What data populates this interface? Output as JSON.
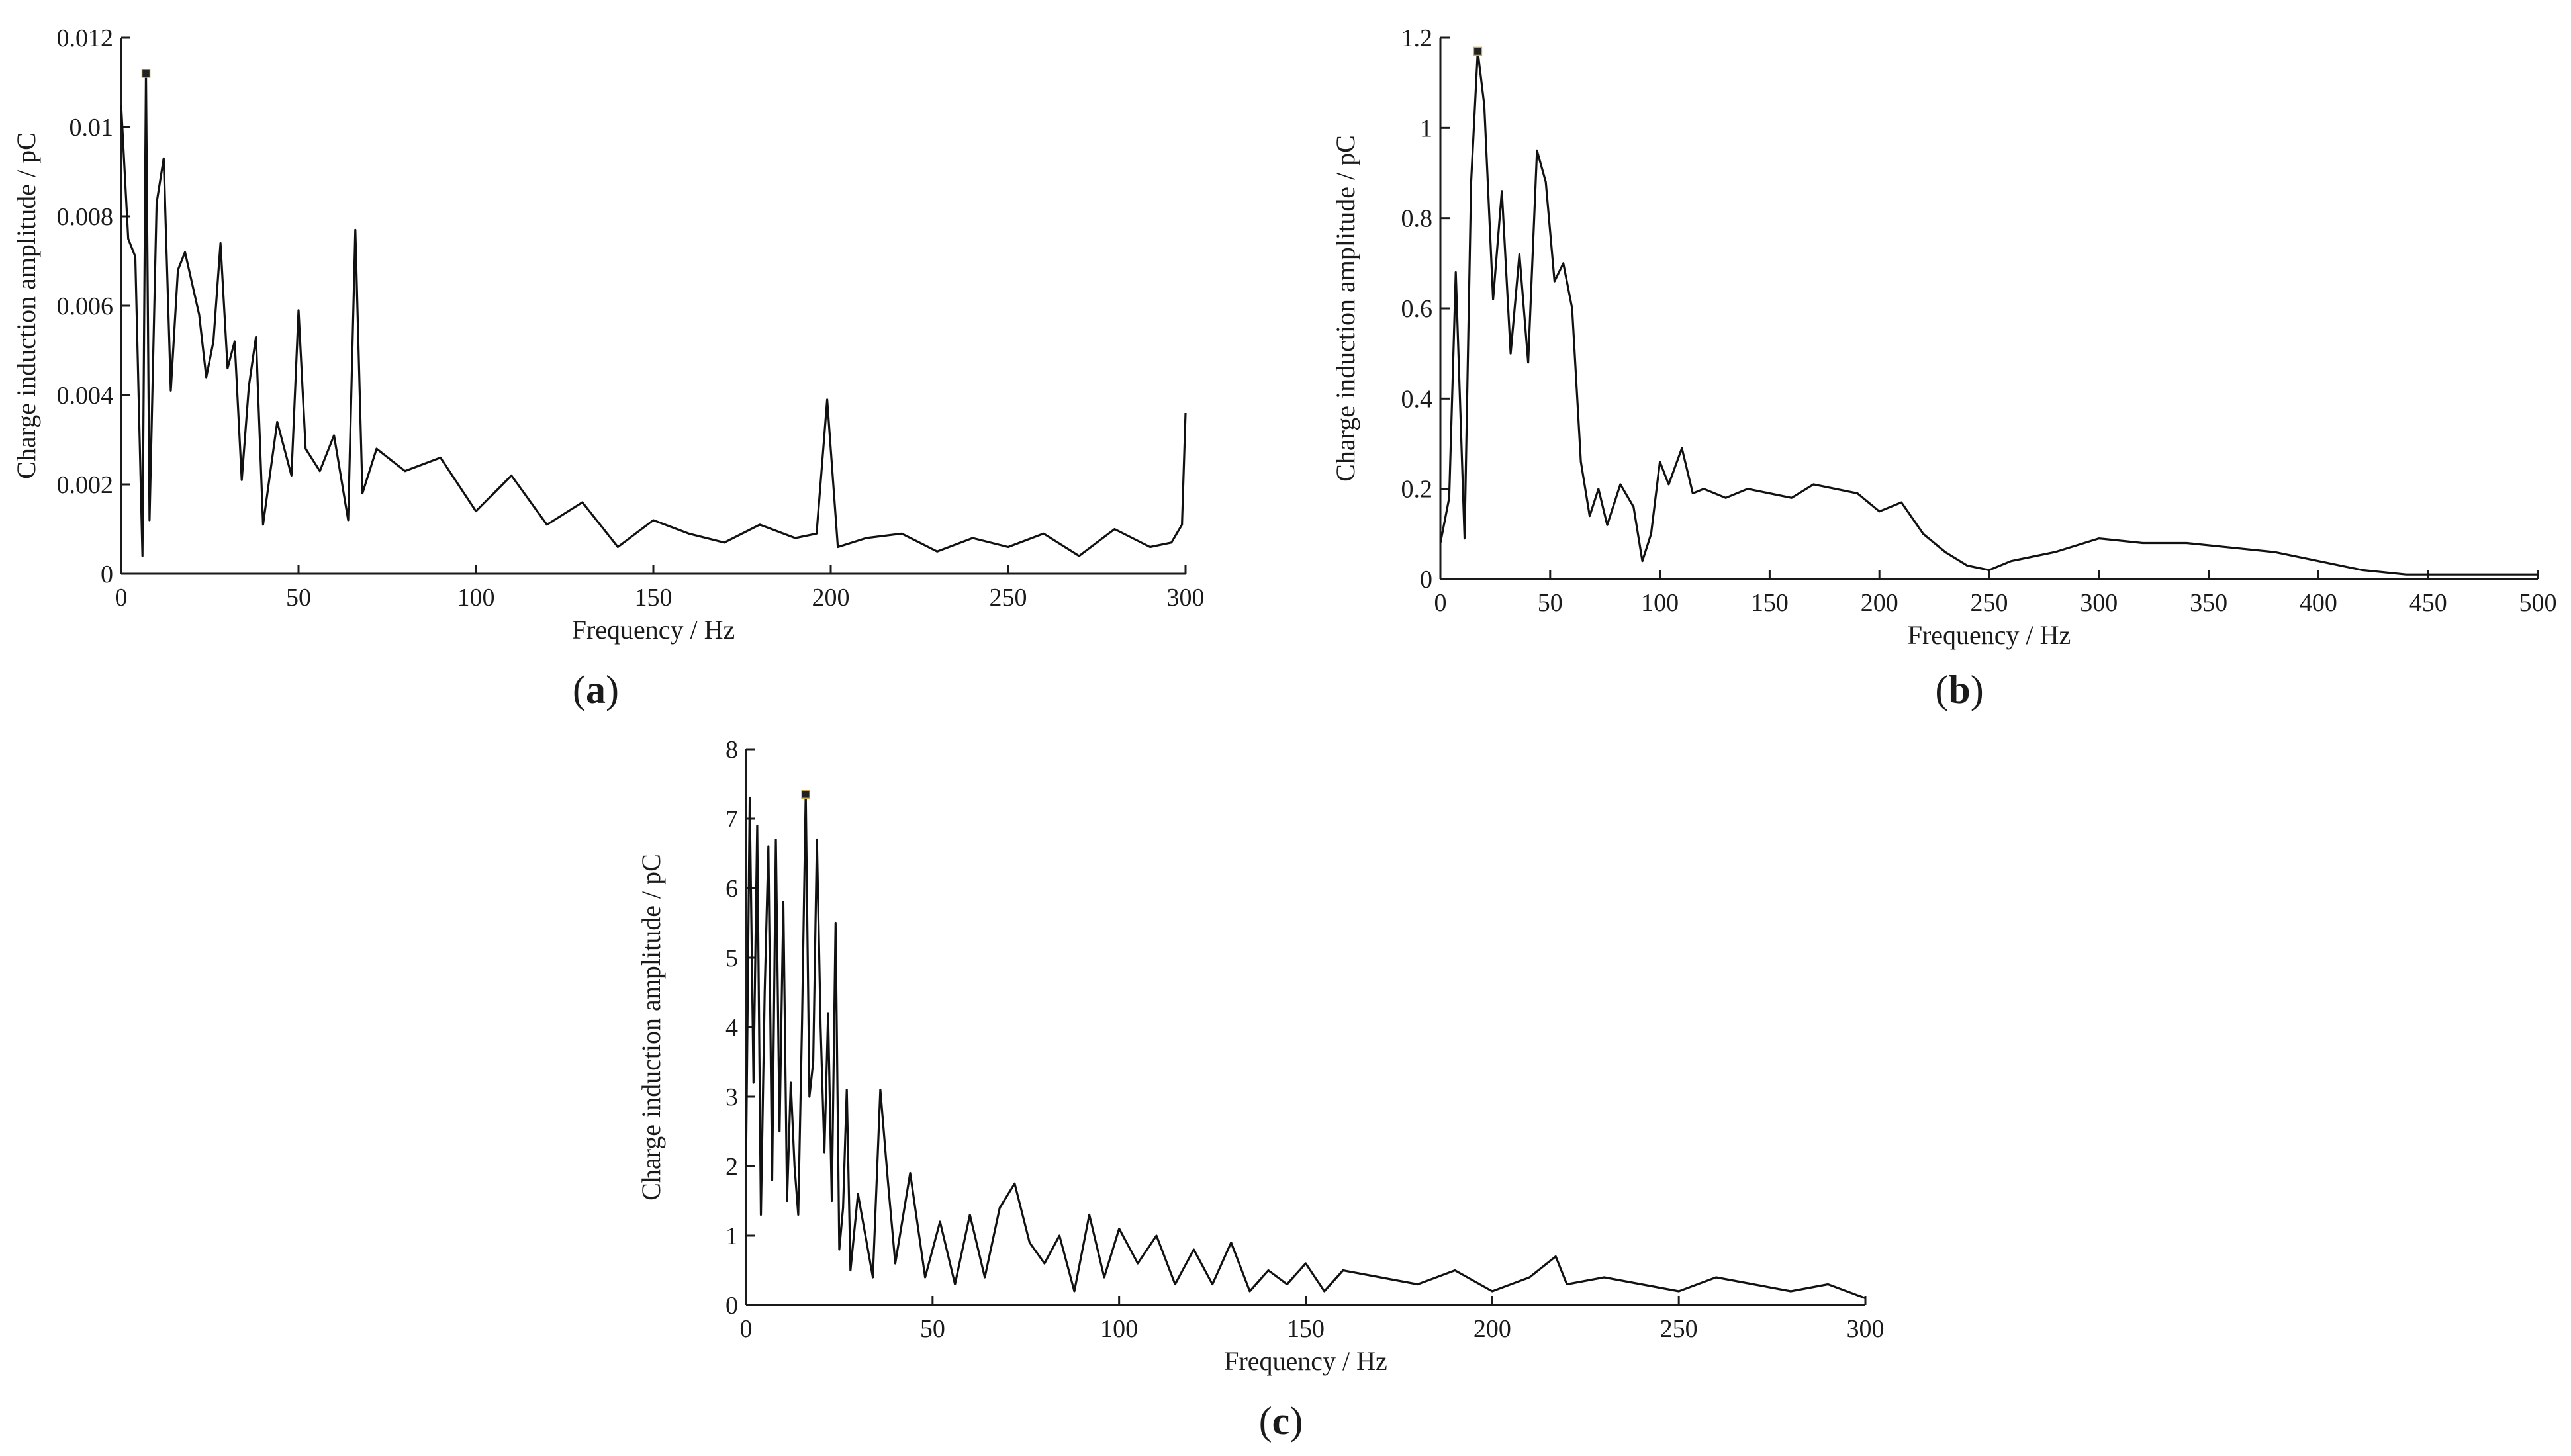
{
  "colors": {
    "line": "#111111",
    "axis": "#1a1a1a",
    "background": "#ffffff"
  },
  "chart_data": [
    {
      "type": "line",
      "panel_label": "a",
      "xlabel": "Frequency / Hz",
      "ylabel": "Charge induction amplitude / pC",
      "xlim": [
        0,
        300
      ],
      "ylim": [
        0,
        0.012
      ],
      "xticks": [
        "0",
        "50",
        "100",
        "150",
        "200",
        "250",
        "300"
      ],
      "yticks": [
        "0",
        "0.002",
        "0.004",
        "0.006",
        "0.008",
        "0.01",
        "0.012"
      ],
      "peak_marker": [
        7,
        0.0112
      ],
      "x": [
        0,
        2,
        4,
        6,
        7,
        8,
        10,
        12,
        14,
        16,
        18,
        20,
        22,
        24,
        26,
        28,
        30,
        32,
        34,
        36,
        38,
        40,
        44,
        48,
        50,
        52,
        56,
        60,
        64,
        66,
        68,
        72,
        80,
        90,
        100,
        110,
        120,
        130,
        140,
        150,
        160,
        170,
        180,
        190,
        196,
        199,
        202,
        210,
        220,
        230,
        240,
        250,
        260,
        270,
        280,
        290,
        296,
        299,
        300
      ],
      "y": [
        0.0105,
        0.0075,
        0.0071,
        0.0004,
        0.0112,
        0.0012,
        0.0083,
        0.0093,
        0.0041,
        0.0068,
        0.0072,
        0.0065,
        0.0058,
        0.0044,
        0.0052,
        0.0074,
        0.0046,
        0.0052,
        0.0021,
        0.0042,
        0.0053,
        0.0011,
        0.0034,
        0.0022,
        0.0059,
        0.0028,
        0.0023,
        0.0031,
        0.0012,
        0.0077,
        0.0018,
        0.0028,
        0.0023,
        0.0026,
        0.0014,
        0.0022,
        0.0011,
        0.0016,
        0.0006,
        0.0012,
        0.0009,
        0.0007,
        0.0011,
        0.0008,
        0.0009,
        0.0039,
        0.0006,
        0.0008,
        0.0009,
        0.0005,
        0.0008,
        0.0006,
        0.0009,
        0.0004,
        0.001,
        0.0006,
        0.0007,
        0.0011,
        0.0036
      ]
    },
    {
      "type": "line",
      "panel_label": "b",
      "xlabel": "Frequency / Hz",
      "ylabel": "Charge induction amplitude / pC",
      "xlim": [
        0,
        500
      ],
      "ylim": [
        0,
        1.2
      ],
      "xticks": [
        "0",
        "50",
        "100",
        "150",
        "200",
        "250",
        "300",
        "350",
        "400",
        "450",
        "500"
      ],
      "yticks": [
        "0",
        "0.2",
        "0.4",
        "0.6",
        "0.8",
        "1",
        "1.2"
      ],
      "peak_marker": [
        17,
        1.17
      ],
      "x": [
        0,
        4,
        7,
        11,
        14,
        17,
        20,
        24,
        28,
        32,
        36,
        40,
        44,
        48,
        52,
        56,
        60,
        64,
        68,
        72,
        76,
        82,
        88,
        92,
        96,
        100,
        104,
        110,
        115,
        120,
        130,
        140,
        150,
        160,
        170,
        180,
        190,
        200,
        210,
        220,
        230,
        240,
        250,
        260,
        280,
        300,
        320,
        340,
        360,
        380,
        400,
        420,
        440,
        460,
        480,
        500
      ],
      "y": [
        0.08,
        0.18,
        0.68,
        0.09,
        0.88,
        1.17,
        1.05,
        0.62,
        0.86,
        0.5,
        0.72,
        0.48,
        0.95,
        0.88,
        0.66,
        0.7,
        0.6,
        0.26,
        0.14,
        0.2,
        0.12,
        0.21,
        0.16,
        0.04,
        0.1,
        0.26,
        0.21,
        0.29,
        0.19,
        0.2,
        0.18,
        0.2,
        0.19,
        0.18,
        0.21,
        0.2,
        0.19,
        0.15,
        0.17,
        0.1,
        0.06,
        0.03,
        0.02,
        0.04,
        0.06,
        0.09,
        0.08,
        0.08,
        0.07,
        0.06,
        0.04,
        0.02,
        0.01,
        0.01,
        0.01,
        0.01
      ]
    },
    {
      "type": "line",
      "panel_label": "c",
      "xlabel": "Frequency / Hz",
      "ylabel": "Charge induction amplitude / pC",
      "xlim": [
        0,
        300
      ],
      "ylim": [
        0,
        8
      ],
      "xticks": [
        "0",
        "50",
        "100",
        "150",
        "200",
        "250",
        "300"
      ],
      "yticks": [
        "0",
        "1",
        "2",
        "3",
        "4",
        "5",
        "6",
        "7",
        "8"
      ],
      "peak_marker": [
        16,
        7.35
      ],
      "x": [
        0,
        1,
        2,
        3,
        4,
        5,
        6,
        7,
        8,
        9,
        10,
        11,
        12,
        13,
        14,
        15,
        16,
        17,
        18,
        19,
        20,
        21,
        22,
        23,
        24,
        25,
        26,
        27,
        28,
        30,
        32,
        34,
        36,
        38,
        40,
        44,
        48,
        52,
        56,
        60,
        64,
        68,
        72,
        76,
        80,
        84,
        88,
        92,
        96,
        100,
        105,
        110,
        115,
        120,
        125,
        130,
        135,
        140,
        145,
        150,
        155,
        160,
        170,
        180,
        190,
        200,
        210,
        217,
        220,
        230,
        240,
        250,
        260,
        270,
        280,
        290,
        300
      ],
      "y": [
        2.0,
        7.3,
        3.2,
        6.9,
        1.3,
        4.5,
        6.6,
        1.8,
        6.7,
        2.5,
        5.8,
        1.5,
        3.2,
        2.0,
        1.3,
        4.0,
        7.35,
        3.0,
        3.5,
        6.7,
        4.0,
        2.2,
        4.2,
        1.5,
        5.5,
        0.8,
        1.4,
        3.1,
        0.5,
        1.6,
        1.0,
        0.4,
        3.1,
        1.8,
        0.6,
        1.9,
        0.4,
        1.2,
        0.3,
        1.3,
        0.4,
        1.4,
        1.75,
        0.9,
        0.6,
        1.0,
        0.2,
        1.3,
        0.4,
        1.1,
        0.6,
        1.0,
        0.3,
        0.8,
        0.3,
        0.9,
        0.2,
        0.5,
        0.3,
        0.6,
        0.2,
        0.5,
        0.4,
        0.3,
        0.5,
        0.2,
        0.4,
        0.7,
        0.3,
        0.4,
        0.3,
        0.2,
        0.4,
        0.3,
        0.2,
        0.3,
        0.1
      ]
    }
  ]
}
